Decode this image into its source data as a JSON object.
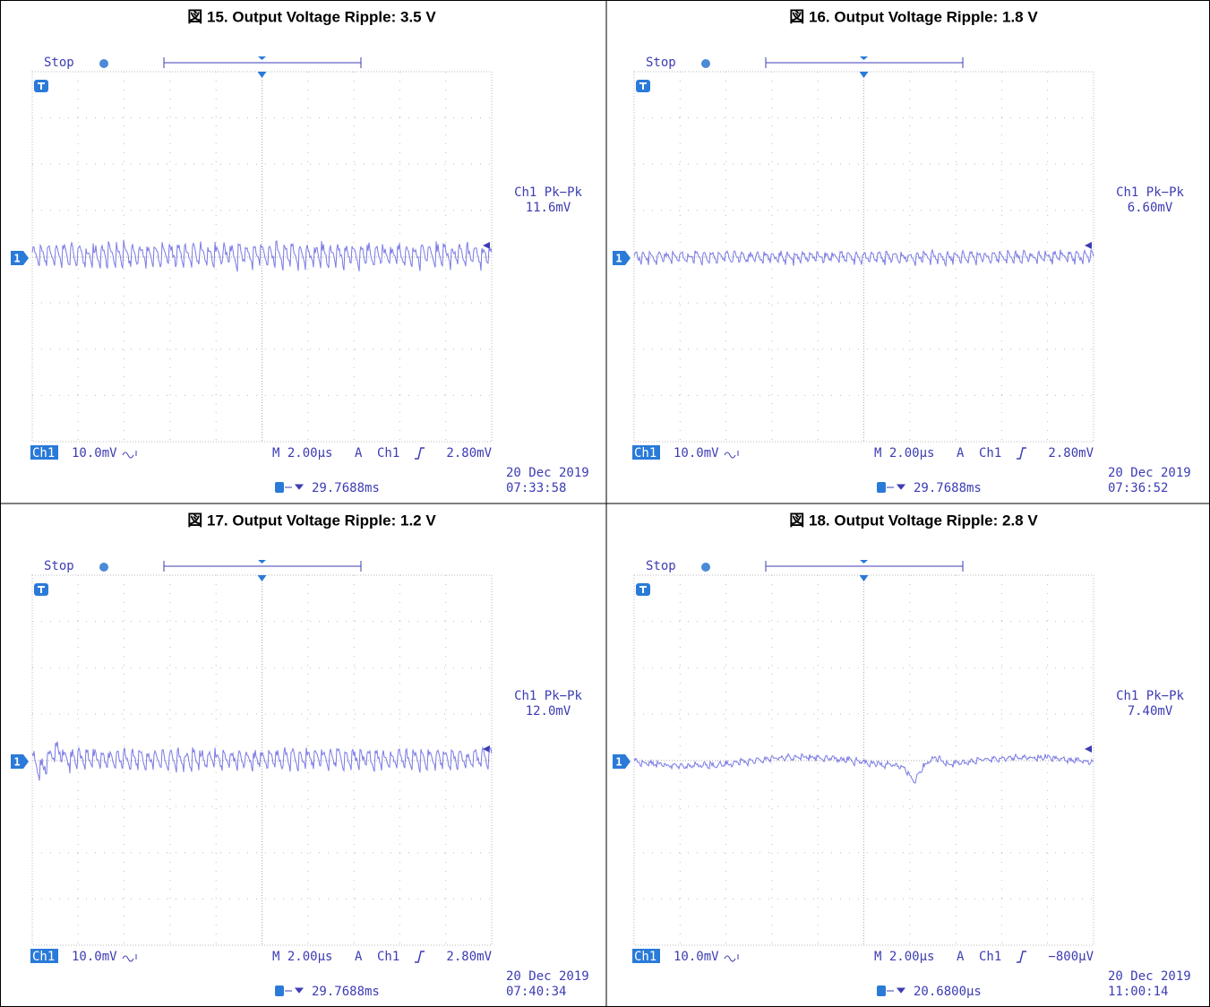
{
  "panels": [
    {
      "title": "図 15. Output Voltage Ripple: 3.5 V",
      "status": "Stop",
      "marker": "1",
      "channel": "Ch1",
      "scale": "10.0mV",
      "timebase": "M 2.00µs",
      "trigger_mode": "A",
      "trigger_source": "Ch1",
      "trigger_level": "2.80mV",
      "measurement_label": "Ch1 Pk−Pk",
      "measurement_value": "11.6mV",
      "date": "20 Dec 2019",
      "time": "07:33:58",
      "trigger_position": "29.7688ms"
    },
    {
      "title": "図 16. Output Voltage Ripple: 1.8 V",
      "status": "Stop",
      "marker": "1",
      "channel": "Ch1",
      "scale": "10.0mV",
      "timebase": "M 2.00µs",
      "trigger_mode": "A",
      "trigger_source": "Ch1",
      "trigger_level": "2.80mV",
      "measurement_label": "Ch1 Pk−Pk",
      "measurement_value": "6.60mV",
      "date": "20 Dec 2019",
      "time": "07:36:52",
      "trigger_position": "29.7688ms"
    },
    {
      "title": "図 17. Output Voltage Ripple: 1.2 V",
      "status": "Stop",
      "marker": "1",
      "channel": "Ch1",
      "scale": "10.0mV",
      "timebase": "M 2.00µs",
      "trigger_mode": "A",
      "trigger_source": "Ch1",
      "trigger_level": "2.80mV",
      "measurement_label": "Ch1 Pk−Pk",
      "measurement_value": "12.0mV",
      "date": "20 Dec 2019",
      "time": "07:40:34",
      "trigger_position": "29.7688ms"
    },
    {
      "title": "図 18. Output Voltage Ripple: 2.8 V",
      "status": "Stop",
      "marker": "1",
      "channel": "Ch1",
      "scale": "10.0mV",
      "timebase": "M 2.00µs",
      "trigger_mode": "A",
      "trigger_source": "Ch1",
      "trigger_level": "−800µV",
      "measurement_label": "Ch1 Pk−Pk",
      "measurement_value": "7.40mV",
      "date": "20 Dec 2019",
      "time": "11:00:14",
      "trigger_position": "20.6800µs"
    }
  ]
}
